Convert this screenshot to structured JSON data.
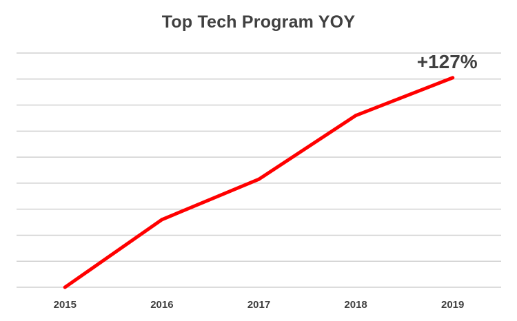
{
  "chart_data": {
    "type": "line",
    "title": "Top Tech Program YOY",
    "xlabel": "",
    "ylabel": "",
    "categories": [
      "2015",
      "2016",
      "2017",
      "2018",
      "2019"
    ],
    "series": [
      {
        "values": [
          0,
          52,
          83,
          132,
          161
        ]
      }
    ],
    "ylim": [
      0,
      180
    ],
    "grid": true,
    "y_tick_labels_visible": false,
    "series_color": "#ff0000",
    "annotations": [
      {
        "text": "+127%",
        "category": "2019"
      }
    ]
  }
}
